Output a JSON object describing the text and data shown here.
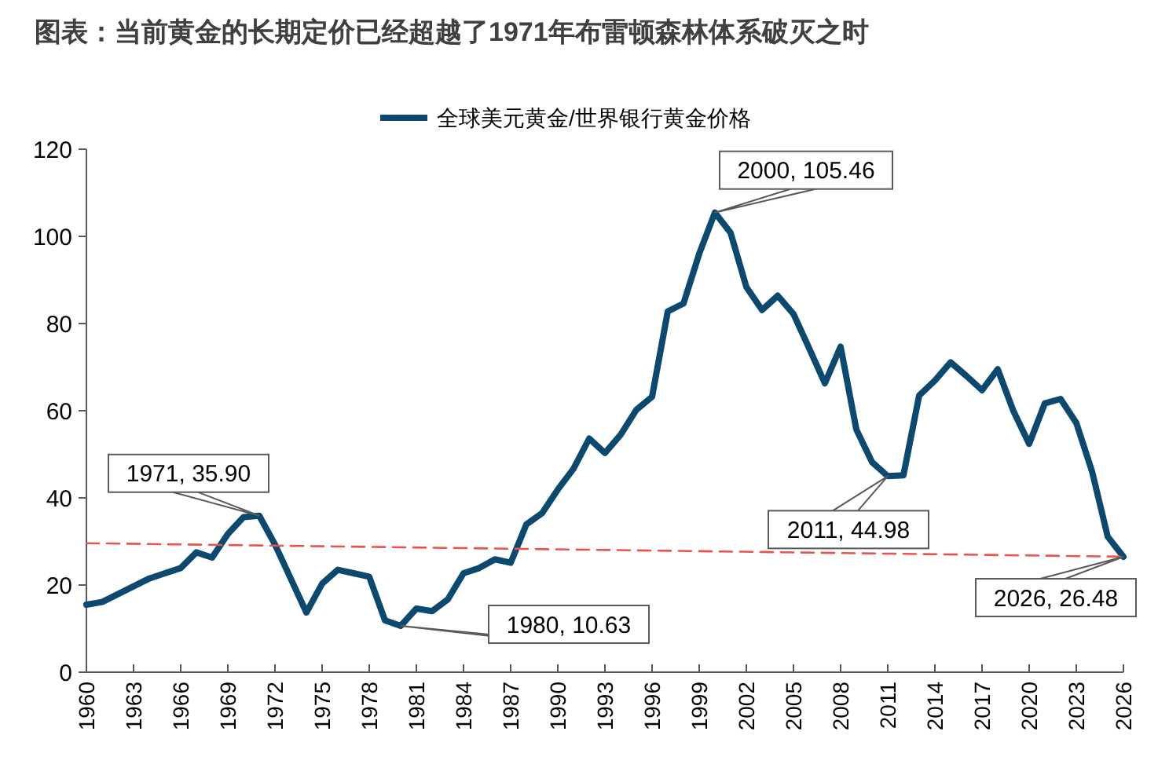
{
  "chart_data": {
    "type": "line",
    "title": "图表：当前黄金的长期定价已经超越了1971年布雷顿森林体系破灭之时",
    "x": [
      1960,
      1961,
      1962,
      1963,
      1964,
      1965,
      1966,
      1967,
      1968,
      1969,
      1970,
      1971,
      1972,
      1973,
      1974,
      1975,
      1976,
      1977,
      1978,
      1979,
      1980,
      1981,
      1982,
      1983,
      1984,
      1985,
      1986,
      1987,
      1988,
      1989,
      1990,
      1991,
      1992,
      1993,
      1994,
      1995,
      1996,
      1997,
      1998,
      1999,
      2000,
      2001,
      2002,
      2003,
      2004,
      2005,
      2006,
      2007,
      2008,
      2009,
      2010,
      2011,
      2012,
      2013,
      2014,
      2015,
      2016,
      2017,
      2018,
      2019,
      2020,
      2021,
      2022,
      2023,
      2024,
      2025,
      2026
    ],
    "series": [
      {
        "name": "全球美元黄金/世界银行黄金价格",
        "color": "#0b4a6e",
        "values": [
          15.5,
          16.1,
          17.9,
          19.7,
          21.5,
          22.7,
          23.9,
          27.5,
          26.3,
          31.7,
          35.6,
          35.9,
          29.3,
          21.5,
          13.7,
          20.3,
          23.5,
          22.7,
          21.9,
          11.9,
          10.63,
          14.6,
          14.0,
          16.7,
          22.7,
          23.9,
          25.9,
          25.1,
          33.9,
          36.5,
          41.9,
          46.7,
          53.6,
          50.3,
          54.5,
          60.2,
          63.2,
          82.8,
          84.6,
          96.0,
          105.46,
          100.8,
          88.4,
          83.1,
          86.4,
          82.2,
          74.3,
          66.3,
          74.7,
          55.7,
          48.2,
          44.98,
          45.2,
          63.5,
          66.9,
          71.1,
          68.0,
          64.7,
          69.5,
          59.9,
          52.4,
          61.7,
          62.7,
          57.2,
          46.1,
          31.1,
          26.48
        ]
      },
      {
        "type": "line",
        "x": [
          1960,
          2026
        ],
        "color": "#e8534f",
        "line_style": "dashed",
        "values": [
          29.6,
          26.5
        ]
      }
    ],
    "xlim": [
      1960,
      2026
    ],
    "xticks": [
      1960,
      1963,
      1966,
      1969,
      1972,
      1975,
      1978,
      1981,
      1984,
      1987,
      1990,
      1993,
      1996,
      1999,
      2002,
      2005,
      2008,
      2011,
      2014,
      2017,
      2020,
      2023,
      2026
    ],
    "ylim": [
      0,
      120
    ],
    "yticks": [
      0,
      20,
      40,
      60,
      80,
      100,
      120
    ],
    "legend": "top",
    "grid": false,
    "annotations": [
      {
        "text": "1971, 35.90",
        "x": 1971,
        "y": 35.9
      },
      {
        "text": "1980, 10.63",
        "x": 1980,
        "y": 10.63
      },
      {
        "text": "2000, 105.46",
        "x": 2000,
        "y": 105.46
      },
      {
        "text": "2011, 44.98",
        "x": 2011,
        "y": 44.98
      },
      {
        "text": "2026, 26.48",
        "x": 2026,
        "y": 26.48
      }
    ]
  }
}
